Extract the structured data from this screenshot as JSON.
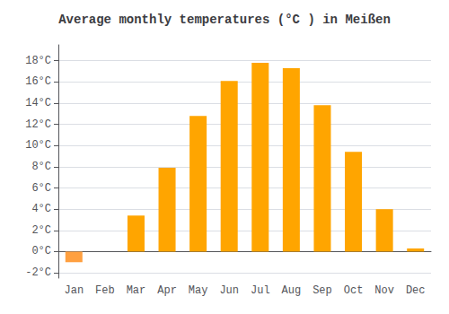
{
  "chart_data": {
    "type": "bar",
    "title": "Average monthly temperatures (°C ) in Meißen",
    "categories": [
      "Jan",
      "Feb",
      "Mar",
      "Apr",
      "May",
      "Jun",
      "Jul",
      "Aug",
      "Sep",
      "Oct",
      "Nov",
      "Dec"
    ],
    "values": [
      -1.0,
      0.0,
      3.4,
      7.9,
      12.8,
      16.1,
      17.8,
      17.3,
      13.8,
      9.4,
      4.0,
      0.3
    ],
    "colors": [
      "#FFA040",
      "#FFA500",
      "#FFA500",
      "#FFA500",
      "#FFA500",
      "#FFA500",
      "#FFA500",
      "#FFA500",
      "#FFA500",
      "#FFA500",
      "#FFA500",
      "#FFA500"
    ],
    "ylim": [
      -2.5,
      19.5
    ],
    "yticks": [
      {
        "value": -2,
        "label": "-2°C"
      },
      {
        "value": 0,
        "label": "0°C"
      },
      {
        "value": 2,
        "label": "2°C"
      },
      {
        "value": 4,
        "label": "4°C"
      },
      {
        "value": 6,
        "label": "6°C"
      },
      {
        "value": 8,
        "label": "8°C"
      },
      {
        "value": 10,
        "label": "10°C"
      },
      {
        "value": 12,
        "label": "12°C"
      },
      {
        "value": 14,
        "label": "14°C"
      },
      {
        "value": 16,
        "label": "16°C"
      },
      {
        "value": 18,
        "label": "18°C"
      }
    ],
    "grid": true
  }
}
